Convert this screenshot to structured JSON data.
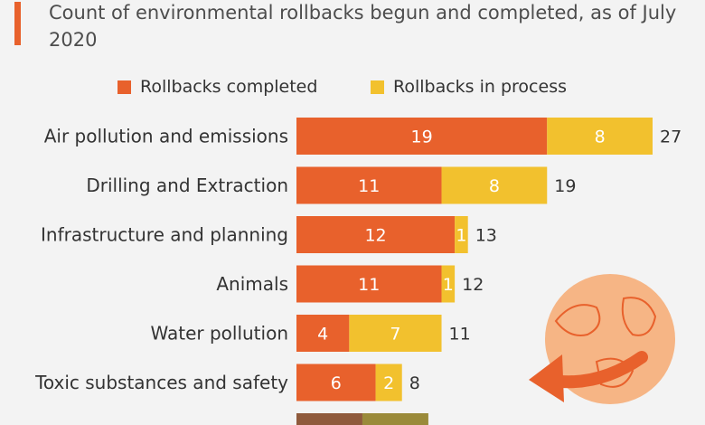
{
  "subtitle": "Count of environmental rollbacks begun and completed, as of July 2020",
  "colors": {
    "completed": "#e8612c",
    "in_process": "#f2c12e",
    "accent": "#e8612c",
    "background": "#f3f3f3",
    "globe": "#f6b585"
  },
  "icons": {
    "globe": "globe-arrow-icon"
  },
  "chart_data": {
    "type": "bar",
    "orientation": "horizontal",
    "stacked": true,
    "categories": [
      "Air pollution and emissions",
      "Drilling and Extraction",
      "Infrastructure and planning",
      "Animals",
      "Water pollution",
      "Toxic substances and safety",
      ""
    ],
    "series": [
      {
        "name": "Rollbacks completed",
        "values": [
          19,
          11,
          12,
          11,
          4,
          6,
          5
        ]
      },
      {
        "name": "Rollbacks in process",
        "values": [
          8,
          8,
          1,
          1,
          7,
          2,
          5
        ]
      }
    ],
    "totals": [
      27,
      19,
      13,
      12,
      11,
      8,
      null
    ],
    "legend_position": "top",
    "xlim": [
      0,
      27
    ],
    "grid": false
  }
}
